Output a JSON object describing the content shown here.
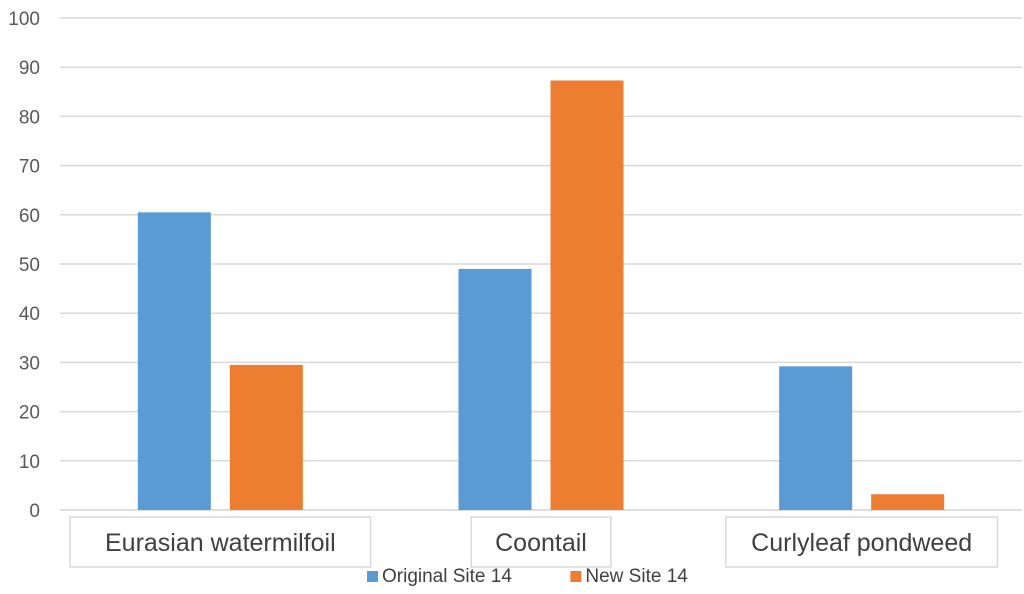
{
  "chart_data": {
    "type": "bar",
    "categories": [
      "Eurasian watermilfoil",
      "Coontail",
      "Curlyleaf pondweed"
    ],
    "series": [
      {
        "name": "Original Site 14",
        "values": [
          60.5,
          49.0,
          29.2
        ],
        "color": "#5B9BD5"
      },
      {
        "name": "New Site 14",
        "values": [
          29.5,
          87.3,
          3.2
        ],
        "color": "#ED7D31"
      }
    ],
    "yticks": [
      0,
      10,
      20,
      30,
      40,
      50,
      60,
      70,
      80,
      90,
      100
    ],
    "ylim": [
      0,
      100
    ],
    "grid": true,
    "legend": "bottom"
  }
}
